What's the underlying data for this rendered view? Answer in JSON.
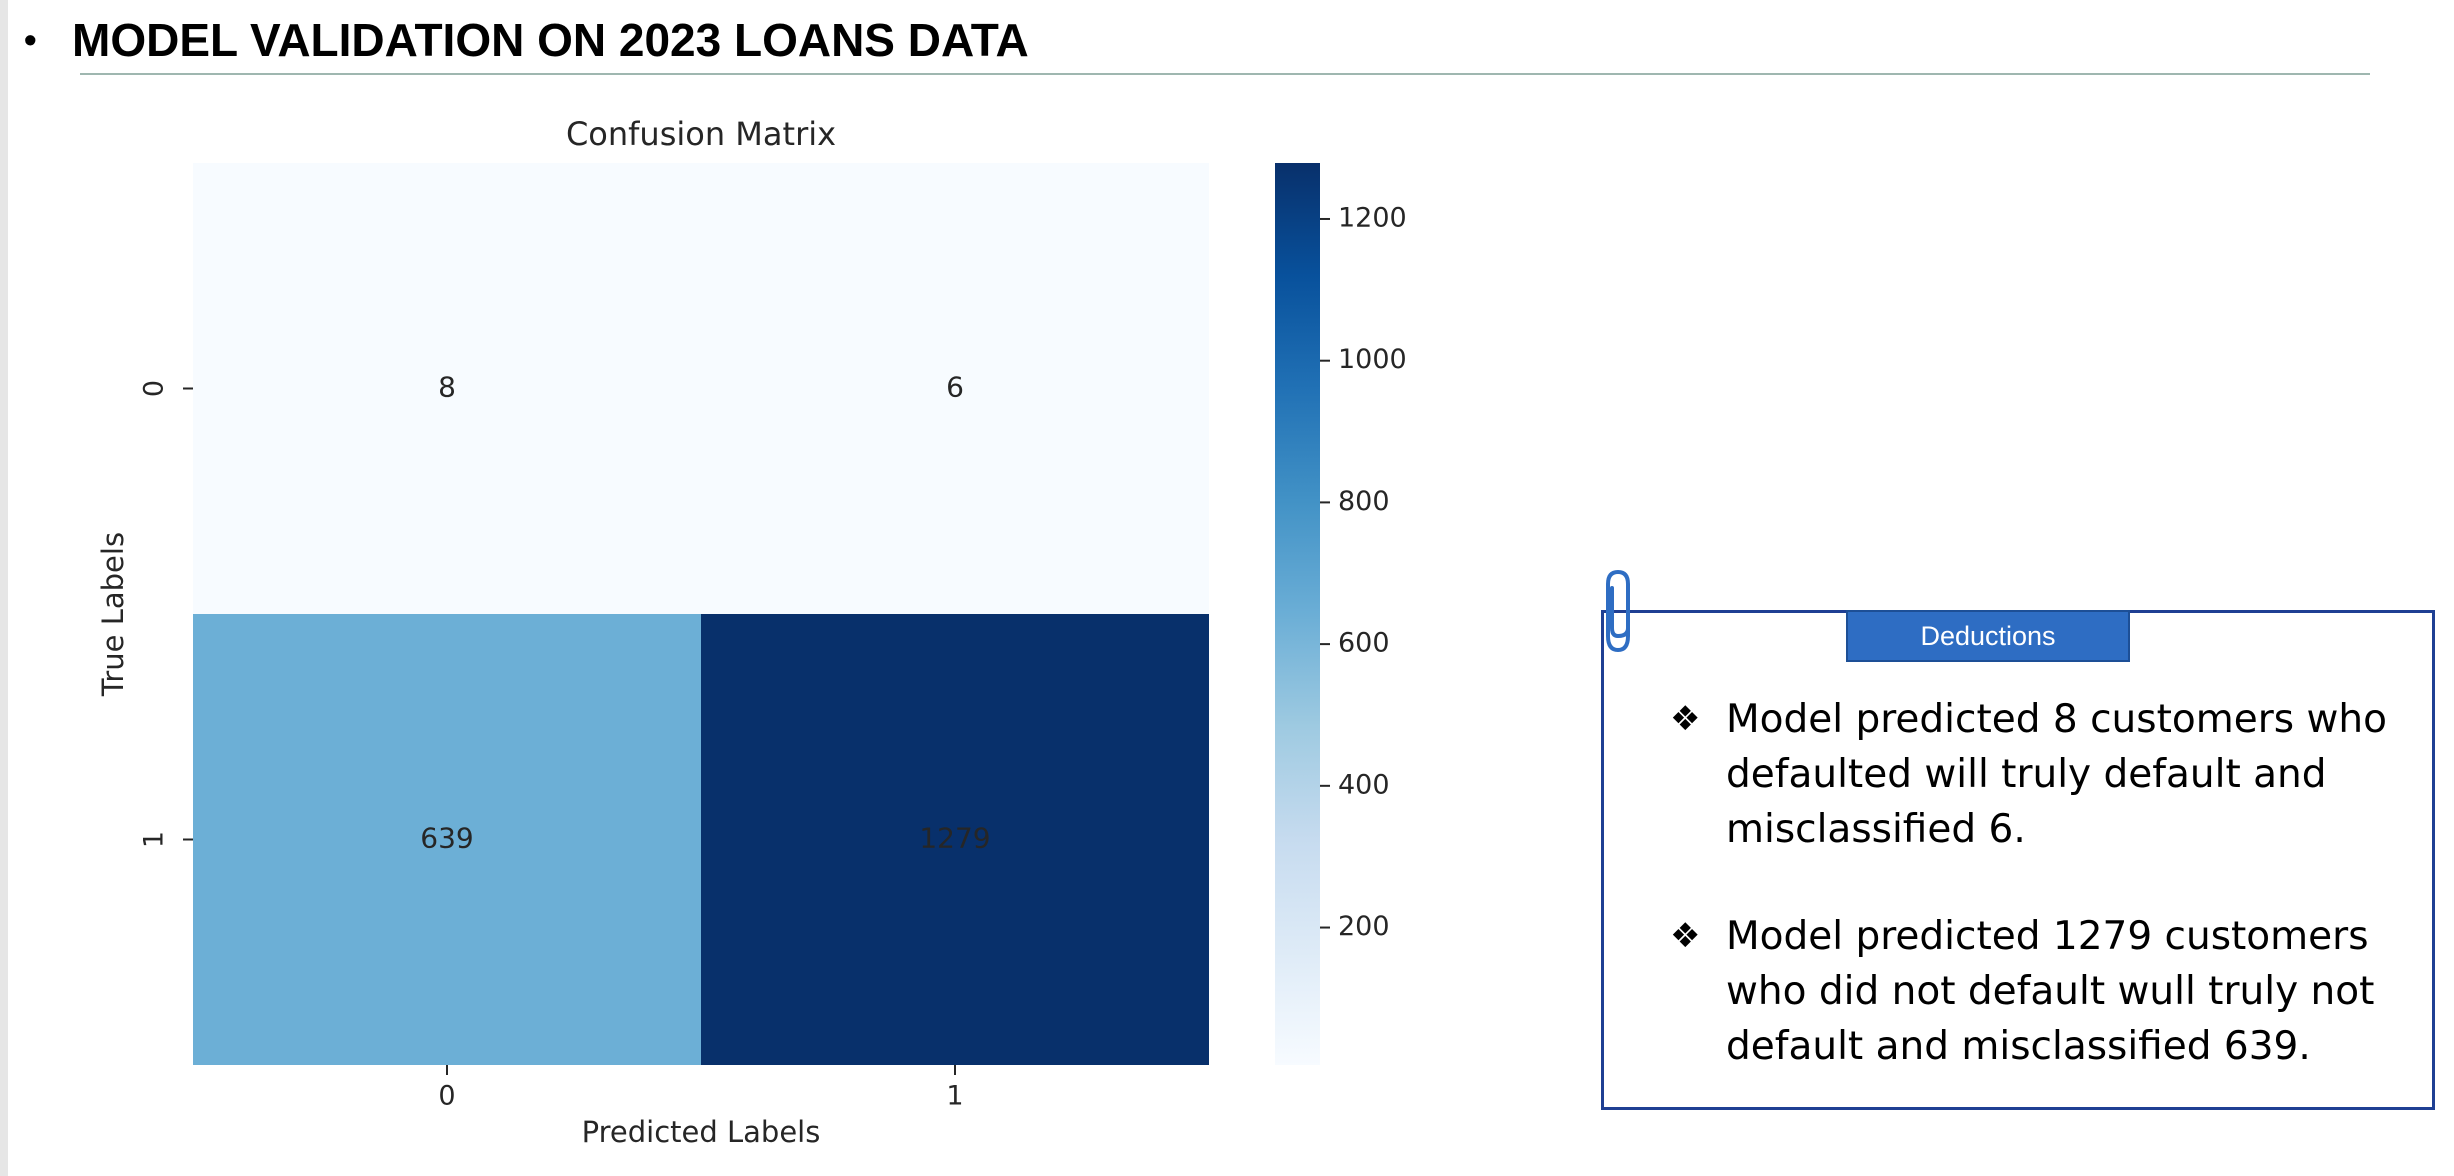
{
  "header": {
    "bullet": "•",
    "title": "MODEL VALIDATION ON 2023 LOANS DATA"
  },
  "chart_data": {
    "type": "heatmap",
    "title": "Confusion Matrix",
    "xlabel": "Predicted Labels",
    "ylabel": "True Labels",
    "x_categories": [
      "0",
      "1"
    ],
    "y_categories": [
      "0",
      "1"
    ],
    "values": [
      [
        8,
        6
      ],
      [
        639,
        1279
      ]
    ],
    "colormap": "Blues",
    "colorbar": {
      "range": [
        6,
        1279
      ],
      "ticks": [
        200,
        400,
        600,
        800,
        1000,
        1200
      ]
    },
    "colors": {
      "low": "#f7fbff",
      "mid_low": "#deebf7",
      "mid": "#6baed6",
      "mid_high": "#2171b5",
      "high": "#08306b"
    }
  },
  "deductions": {
    "label": "Deductions",
    "bullet_symbol": "❖",
    "items": [
      {
        "lines": [
          "Model predicted 8 customers who",
          "defaulted will truly default and",
          "misclassified 6."
        ]
      },
      {
        "lines": [
          "Model predicted 1279 customers",
          "who did not default wull truly not",
          "default and misclassified 639."
        ]
      }
    ]
  }
}
